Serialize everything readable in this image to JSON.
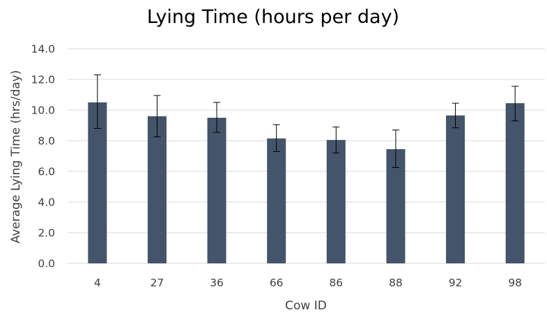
{
  "chart_data": {
    "type": "bar",
    "title": "Lying Time (hours per day)",
    "xlabel": "Cow ID",
    "ylabel": "Average Lying Time (hrs/day)",
    "categories": [
      "4",
      "27",
      "36",
      "66",
      "86",
      "88",
      "92",
      "98"
    ],
    "series": [
      {
        "values": [
          10.5,
          9.6,
          9.5,
          8.15,
          8.05,
          7.45,
          9.65,
          10.45
        ],
        "error_low": [
          8.8,
          8.25,
          8.55,
          7.3,
          7.2,
          6.25,
          8.85,
          9.3
        ],
        "error_high": [
          12.3,
          10.95,
          10.5,
          9.05,
          8.9,
          8.7,
          10.45,
          11.55
        ]
      }
    ],
    "ylim": [
      0,
      14
    ],
    "yticks": [
      "0.0",
      "2.0",
      "4.0",
      "6.0",
      "8.0",
      "10.0",
      "12.0",
      "14.0"
    ],
    "grid": true,
    "legend": "none",
    "colors": {
      "bar": "#44546a",
      "gridline": "#d9d9d9",
      "error_bar": "#000000",
      "text": "#404040"
    }
  }
}
